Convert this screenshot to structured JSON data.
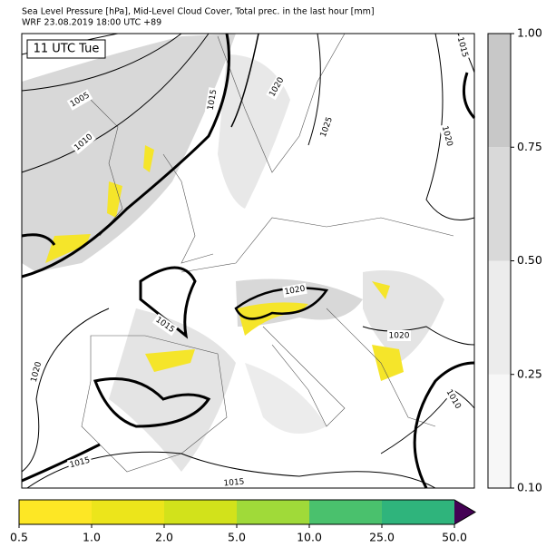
{
  "header": {
    "title_line1": "Sea Level Pressure [hPa], Mid-Level Cloud Cover, Total prec. in the last hour [mm]",
    "title_line2": "WRF 23.08.2019 18:00 UTC +89"
  },
  "time_label": "11 UTC Tue",
  "contour_labels": [
    1015,
    1005,
    1010,
    1015,
    1020,
    1025,
    1020,
    1015,
    1020,
    1020,
    1020,
    1010,
    1015,
    1015
  ],
  "cloud_colorbar": {
    "ticks": [
      {
        "value": 0.1,
        "label": "0.10"
      },
      {
        "value": 0.25,
        "label": "0.25"
      },
      {
        "value": 0.5,
        "label": "0.50"
      },
      {
        "value": 0.75,
        "label": "0.75"
      },
      {
        "value": 1,
        "label": "1.00"
      }
    ],
    "colors": [
      "#f7f7f7",
      "#ececec",
      "#d9d9d9",
      "#c8c8c8"
    ]
  },
  "precip_colorbar": {
    "ticks": [
      0.5,
      {
        "value": 1,
        "label": "1.0"
      },
      {
        "value": 2,
        "label": "2.0"
      },
      {
        "value": 5,
        "label": "5.0"
      },
      {
        "value": 10,
        "label": "10.0"
      },
      {
        "value": 25,
        "label": "25.0"
      },
      {
        "value": 50,
        "label": "50.0"
      }
    ],
    "colors": [
      "#fde725",
      "#ece51b",
      "#d2e21b",
      "#a0da39",
      "#4ac16d",
      "#2fb47c",
      "#3b528b"
    ],
    "extend_color": "#440154"
  }
}
